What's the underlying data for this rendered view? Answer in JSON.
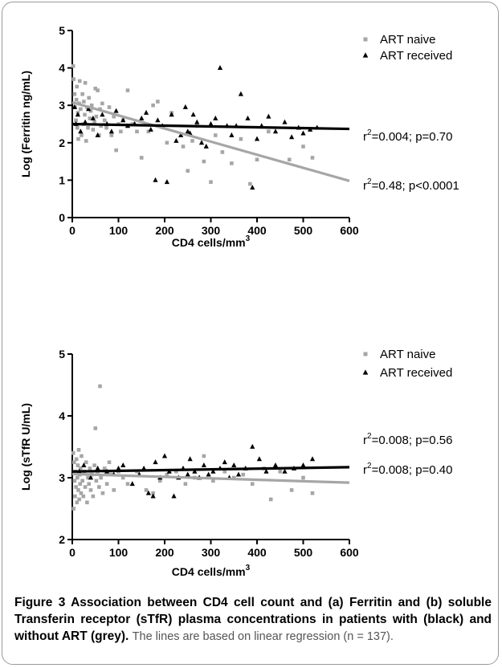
{
  "chart_data": [
    {
      "type": "scatter",
      "xlabel_main": "CD4 cells/mm",
      "xlabel_sup": "3",
      "ylabel": "Log (Ferritin ng/mL)",
      "xlim": [
        0,
        600
      ],
      "ylim": [
        0,
        5
      ],
      "xticks": [
        0,
        100,
        200,
        300,
        400,
        500,
        600
      ],
      "yticks": [
        0,
        1,
        2,
        3,
        4,
        5
      ],
      "legend_position": "top-right",
      "series": [
        {
          "name": "ART naive",
          "marker": "square",
          "color": "#a6a6a6",
          "points": [
            [
              2,
              4.05
            ],
            [
              3,
              3.7
            ],
            [
              5,
              3.3
            ],
            [
              6,
              2.95
            ],
            [
              8,
              2.6
            ],
            [
              9,
              3.15
            ],
            [
              10,
              3.5
            ],
            [
              11,
              2.4
            ],
            [
              12,
              2.8
            ],
            [
              13,
              2.1
            ],
            [
              15,
              3.05
            ],
            [
              16,
              3.65
            ],
            [
              18,
              2.9
            ],
            [
              20,
              2.2
            ],
            [
              22,
              3.3
            ],
            [
              24,
              2.5
            ],
            [
              25,
              3.1
            ],
            [
              27,
              2.75
            ],
            [
              28,
              3.6
            ],
            [
              30,
              2.05
            ],
            [
              32,
              2.95
            ],
            [
              34,
              2.4
            ],
            [
              36,
              3.2
            ],
            [
              38,
              2.65
            ],
            [
              40,
              2.85
            ],
            [
              42,
              3.0
            ],
            [
              45,
              2.35
            ],
            [
              48,
              2.55
            ],
            [
              50,
              3.45
            ],
            [
              52,
              2.7
            ],
            [
              55,
              3.4
            ],
            [
              58,
              2.2
            ],
            [
              60,
              2.9
            ],
            [
              62,
              2.45
            ],
            [
              65,
              3.05
            ],
            [
              70,
              2.6
            ],
            [
              74,
              2.4
            ],
            [
              80,
              2.95
            ],
            [
              85,
              2.2
            ],
            [
              90,
              2.7
            ],
            [
              95,
              1.8
            ],
            [
              100,
              2.5
            ],
            [
              105,
              2.3
            ],
            [
              110,
              2.6
            ],
            [
              120,
              3.4
            ],
            [
              130,
              2.5
            ],
            [
              140,
              2.3
            ],
            [
              150,
              1.6
            ],
            [
              165,
              2.3
            ],
            [
              175,
              3.0
            ],
            [
              185,
              3.1
            ],
            [
              205,
              2.0
            ],
            [
              215,
              2.8
            ],
            [
              240,
              1.9
            ],
            [
              250,
              1.25
            ],
            [
              260,
              2.05
            ],
            [
              270,
              2.45
            ],
            [
              285,
              1.5
            ],
            [
              300,
              0.95
            ],
            [
              310,
              2.2
            ],
            [
              325,
              1.75
            ],
            [
              345,
              1.45
            ],
            [
              365,
              2.1
            ],
            [
              385,
              0.9
            ],
            [
              400,
              1.55
            ],
            [
              425,
              2.3
            ],
            [
              470,
              1.55
            ],
            [
              500,
              1.9
            ],
            [
              520,
              1.6
            ]
          ],
          "regression": {
            "x": [
              0,
              600
            ],
            "y": [
              3.08,
              0.98
            ]
          }
        },
        {
          "name": "ART received",
          "marker": "triangle",
          "color": "#000000",
          "points": [
            [
              5,
              2.95
            ],
            [
              8,
              2.5
            ],
            [
              12,
              2.75
            ],
            [
              18,
              2.3
            ],
            [
              28,
              2.55
            ],
            [
              35,
              2.9
            ],
            [
              45,
              2.65
            ],
            [
              55,
              2.2
            ],
            [
              65,
              2.75
            ],
            [
              75,
              2.5
            ],
            [
              85,
              2.3
            ],
            [
              95,
              2.85
            ],
            [
              110,
              2.6
            ],
            [
              120,
              2.45
            ],
            [
              135,
              2.5
            ],
            [
              150,
              2.65
            ],
            [
              160,
              2.8
            ],
            [
              170,
              2.35
            ],
            [
              180,
              1.0
            ],
            [
              185,
              2.6
            ],
            [
              195,
              2.45
            ],
            [
              205,
              0.95
            ],
            [
              215,
              2.75
            ],
            [
              225,
              2.05
            ],
            [
              235,
              2.2
            ],
            [
              245,
              2.95
            ],
            [
              250,
              2.3
            ],
            [
              255,
              2.25
            ],
            [
              262,
              2.75
            ],
            [
              270,
              2.55
            ],
            [
              280,
              2.0
            ],
            [
              290,
              1.9
            ],
            [
              300,
              2.5
            ],
            [
              310,
              2.65
            ],
            [
              320,
              4.0
            ],
            [
              335,
              2.45
            ],
            [
              345,
              2.2
            ],
            [
              355,
              2.45
            ],
            [
              365,
              3.3
            ],
            [
              380,
              2.65
            ],
            [
              390,
              0.8
            ],
            [
              400,
              2.1
            ],
            [
              410,
              2.45
            ],
            [
              425,
              2.7
            ],
            [
              440,
              2.3
            ],
            [
              460,
              2.55
            ],
            [
              475,
              2.15
            ],
            [
              490,
              2.4
            ],
            [
              500,
              2.25
            ],
            [
              515,
              2.35
            ],
            [
              530,
              2.4
            ]
          ],
          "regression": {
            "x": [
              0,
              600
            ],
            "y": [
              2.5,
              2.37
            ]
          }
        }
      ],
      "annotations": [
        {
          "pre": "r",
          "sup": "2",
          "post": "=0.004; p=0.70"
        },
        {
          "pre": "r",
          "sup": "2",
          "post": "=0.48; p<0.0001"
        }
      ]
    },
    {
      "type": "scatter",
      "xlabel_main": "CD4 cells/mm",
      "xlabel_sup": "3",
      "ylabel": "Log (sTfR U/mL)",
      "xlim": [
        0,
        600
      ],
      "ylim": [
        2,
        5
      ],
      "xticks": [
        0,
        100,
        200,
        300,
        400,
        500,
        600
      ],
      "yticks": [
        2,
        3,
        4,
        5
      ],
      "legend_position": "top-right",
      "series": [
        {
          "name": "ART naive",
          "marker": "square",
          "color": "#a6a6a6",
          "points": [
            [
              2,
              3.4
            ],
            [
              3,
              2.5
            ],
            [
              4,
              3.25
            ],
            [
              5,
              2.95
            ],
            [
              6,
              2.7
            ],
            [
              7,
              3.1
            ],
            [
              8,
              2.85
            ],
            [
              9,
              3.3
            ],
            [
              10,
              2.6
            ],
            [
              11,
              3.0
            ],
            [
              12,
              3.2
            ],
            [
              13,
              2.8
            ],
            [
              14,
              3.45
            ],
            [
              15,
              2.65
            ],
            [
              16,
              3.05
            ],
            [
              17,
              2.9
            ],
            [
              18,
              3.15
            ],
            [
              19,
              2.75
            ],
            [
              20,
              3.35
            ],
            [
              22,
              2.95
            ],
            [
              24,
              2.7
            ],
            [
              26,
              3.1
            ],
            [
              28,
              2.85
            ],
            [
              30,
              3.25
            ],
            [
              32,
              2.6
            ],
            [
              34,
              3.0
            ],
            [
              36,
              2.9
            ],
            [
              38,
              3.15
            ],
            [
              40,
              2.8
            ],
            [
              42,
              3.05
            ],
            [
              45,
              2.7
            ],
            [
              48,
              3.2
            ],
            [
              50,
              3.8
            ],
            [
              52,
              2.95
            ],
            [
              55,
              3.1
            ],
            [
              58,
              2.85
            ],
            [
              60,
              4.48
            ],
            [
              62,
              3.0
            ],
            [
              66,
              2.75
            ],
            [
              70,
              3.15
            ],
            [
              75,
              2.9
            ],
            [
              80,
              3.25
            ],
            [
              85,
              3.05
            ],
            [
              90,
              2.8
            ],
            [
              100,
              3.1
            ],
            [
              110,
              3.0
            ],
            [
              120,
              2.9
            ],
            [
              140,
              3.1
            ],
            [
              160,
              2.8
            ],
            [
              175,
              2.75
            ],
            [
              190,
              2.95
            ],
            [
              205,
              3.05
            ],
            [
              225,
              3.1
            ],
            [
              245,
              2.9
            ],
            [
              265,
              3.0
            ],
            [
              285,
              3.35
            ],
            [
              305,
              2.95
            ],
            [
              330,
              3.1
            ],
            [
              350,
              3.0
            ],
            [
              370,
              3.05
            ],
            [
              390,
              2.9
            ],
            [
              415,
              3.15
            ],
            [
              430,
              2.65
            ],
            [
              450,
              3.1
            ],
            [
              475,
              2.8
            ],
            [
              500,
              3.0
            ],
            [
              520,
              2.75
            ]
          ],
          "regression": {
            "x": [
              0,
              600
            ],
            "y": [
              3.06,
              2.92
            ]
          }
        },
        {
          "name": "ART received",
          "marker": "triangle",
          "color": "#000000",
          "points": [
            [
              15,
              3.1
            ],
            [
              25,
              3.2
            ],
            [
              40,
              3.0
            ],
            [
              55,
              3.15
            ],
            [
              75,
              3.1
            ],
            [
              90,
              3.05
            ],
            [
              100,
              3.15
            ],
            [
              110,
              3.2
            ],
            [
              130,
              2.9
            ],
            [
              145,
              3.05
            ],
            [
              155,
              3.15
            ],
            [
              165,
              2.75
            ],
            [
              175,
              2.7
            ],
            [
              180,
              3.25
            ],
            [
              190,
              3.0
            ],
            [
              200,
              3.35
            ],
            [
              210,
              3.1
            ],
            [
              220,
              2.7
            ],
            [
              230,
              3.0
            ],
            [
              240,
              3.15
            ],
            [
              250,
              3.05
            ],
            [
              255,
              3.3
            ],
            [
              265,
              3.1
            ],
            [
              275,
              3.0
            ],
            [
              285,
              3.2
            ],
            [
              295,
              3.05
            ],
            [
              305,
              3.1
            ],
            [
              320,
              3.15
            ],
            [
              330,
              3.25
            ],
            [
              340,
              3.0
            ],
            [
              350,
              3.2
            ],
            [
              360,
              3.05
            ],
            [
              375,
              3.15
            ],
            [
              390,
              3.5
            ],
            [
              405,
              3.3
            ],
            [
              420,
              3.1
            ],
            [
              440,
              3.2
            ],
            [
              460,
              3.1
            ],
            [
              480,
              3.15
            ],
            [
              500,
              3.2
            ],
            [
              520,
              3.3
            ]
          ],
          "regression": {
            "x": [
              0,
              600
            ],
            "y": [
              3.1,
              3.17
            ]
          }
        }
      ],
      "annotations": [
        {
          "pre": "r",
          "sup": "2",
          "post": "=0.008; p=0.56"
        },
        {
          "pre": "r",
          "sup": "2",
          "post": "=0.008; p=0.40"
        }
      ]
    }
  ],
  "caption": {
    "bold": "Figure 3 Association between CD4 cell count and (a) Ferritin and (b) soluble Transferin receptor (sTfR) plasma concentrations in patients with (black) and without ART (grey)",
    "period": ".",
    "note": "The lines are based on linear regression (n = 137)."
  }
}
